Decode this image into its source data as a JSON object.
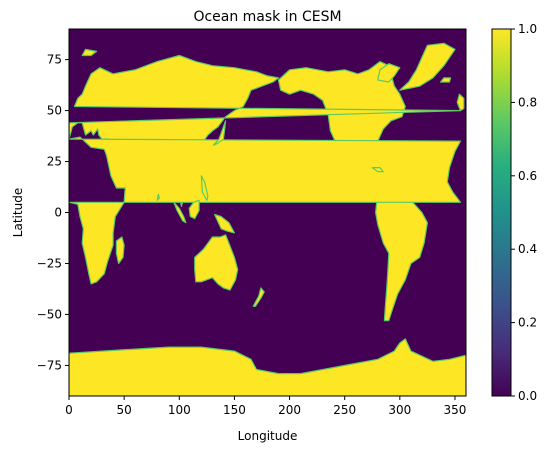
{
  "chart_data": {
    "type": "heatmap",
    "title": "Ocean mask in CESM",
    "xlabel": "Longitude",
    "ylabel": "Latitude",
    "xlim": [
      0,
      360
    ],
    "ylim": [
      -90,
      90
    ],
    "x_ticks": [
      0,
      50,
      100,
      150,
      200,
      250,
      300,
      350
    ],
    "y_ticks": [
      -75,
      -50,
      -25,
      0,
      25,
      50,
      75
    ],
    "colorbar": {
      "colormap": "viridis",
      "range": [
        0.0,
        1.0
      ],
      "ticks": [
        "0.0",
        "0.2",
        "0.4",
        "0.6",
        "0.8",
        "1.0"
      ]
    },
    "background_value": 0.0,
    "land_value": 1.0,
    "colors": {
      "low": "#440154",
      "high": "#fde725"
    },
    "land_regions": [
      {
        "region": "North America",
        "lonlat": [
          [
            190,
            65
          ],
          [
            200,
            70
          ],
          [
            215,
            71
          ],
          [
            235,
            69
          ],
          [
            250,
            70
          ],
          [
            262,
            68
          ],
          [
            272,
            70
          ],
          [
            282,
            74
          ],
          [
            290,
            72
          ],
          [
            295,
            62
          ],
          [
            300,
            58
          ],
          [
            305,
            52
          ],
          [
            302,
            47
          ],
          [
            292,
            45
          ],
          [
            285,
            41
          ],
          [
            280,
            35
          ],
          [
            278,
            30
          ],
          [
            280,
            26
          ],
          [
            278,
            25
          ],
          [
            272,
            30
          ],
          [
            262,
            29
          ],
          [
            258,
            23
          ],
          [
            262,
            19
          ],
          [
            268,
            16
          ],
          [
            275,
            15
          ],
          [
            278,
            10
          ],
          [
            282,
            8
          ],
          [
            275,
            13
          ],
          [
            265,
            16
          ],
          [
            255,
            20
          ],
          [
            250,
            26
          ],
          [
            243,
            33
          ],
          [
            237,
            40
          ],
          [
            235,
            48
          ],
          [
            230,
            55
          ],
          [
            222,
            58
          ],
          [
            210,
            60
          ],
          [
            200,
            58
          ],
          [
            192,
            60
          ],
          [
            190,
            65
          ]
        ]
      },
      {
        "region": "Greenland",
        "lonlat": [
          [
            300,
            60
          ],
          [
            308,
            64
          ],
          [
            315,
            70
          ],
          [
            320,
            76
          ],
          [
            325,
            82
          ],
          [
            340,
            83
          ],
          [
            350,
            80
          ],
          [
            340,
            72
          ],
          [
            330,
            66
          ],
          [
            318,
            62
          ],
          [
            300,
            60
          ]
        ]
      },
      {
        "region": "South America",
        "lonlat": [
          [
            280,
            10
          ],
          [
            290,
            12
          ],
          [
            300,
            8
          ],
          [
            310,
            6
          ],
          [
            320,
            0
          ],
          [
            325,
            -5
          ],
          [
            322,
            -15
          ],
          [
            318,
            -22
          ],
          [
            310,
            -25
          ],
          [
            305,
            -33
          ],
          [
            298,
            -40
          ],
          [
            293,
            -48
          ],
          [
            290,
            -53
          ],
          [
            286,
            -53
          ],
          [
            287,
            -45
          ],
          [
            288,
            -38
          ],
          [
            289,
            -30
          ],
          [
            290,
            -20
          ],
          [
            285,
            -15
          ],
          [
            280,
            -6
          ],
          [
            278,
            0
          ],
          [
            280,
            10
          ]
        ]
      },
      {
        "region": "Europe and Asia",
        "lonlat": [
          [
            0,
            36
          ],
          [
            0,
            44
          ],
          [
            355,
            50
          ],
          [
            5,
            52
          ],
          [
            8,
            56
          ],
          [
            12,
            58
          ],
          [
            15,
            62
          ],
          [
            20,
            68
          ],
          [
            28,
            71
          ],
          [
            40,
            68
          ],
          [
            50,
            69
          ],
          [
            60,
            70
          ],
          [
            70,
            72
          ],
          [
            80,
            74
          ],
          [
            100,
            77
          ],
          [
            115,
            74
          ],
          [
            130,
            72
          ],
          [
            150,
            71
          ],
          [
            160,
            70
          ],
          [
            170,
            69
          ],
          [
            180,
            67
          ],
          [
            190,
            66
          ],
          [
            185,
            64
          ],
          [
            175,
            62
          ],
          [
            165,
            60
          ],
          [
            162,
            56
          ],
          [
            158,
            52
          ],
          [
            150,
            50
          ],
          [
            142,
            47
          ],
          [
            135,
            42
          ],
          [
            130,
            40
          ],
          [
            126,
            38
          ],
          [
            122,
            35
          ],
          [
            120,
            30
          ],
          [
            120,
            25
          ],
          [
            110,
            20
          ],
          [
            108,
            15
          ],
          [
            105,
            10
          ],
          [
            102,
            3
          ],
          [
            100,
            8
          ],
          [
            98,
            16
          ],
          [
            95,
            18
          ],
          [
            90,
            22
          ],
          [
            85,
            21
          ],
          [
            80,
            15
          ],
          [
            77,
            8
          ],
          [
            73,
            18
          ],
          [
            70,
            23
          ],
          [
            66,
            25
          ],
          [
            58,
            25
          ],
          [
            57,
            22
          ],
          [
            55,
            17
          ],
          [
            50,
            14
          ],
          [
            45,
            13
          ],
          [
            43,
            15
          ],
          [
            40,
            22
          ],
          [
            35,
            28
          ],
          [
            34,
            31
          ],
          [
            36,
            36
          ],
          [
            30,
            36
          ],
          [
            27,
            38
          ],
          [
            26,
            41
          ],
          [
            22,
            38
          ],
          [
            20,
            40
          ],
          [
            15,
            38
          ],
          [
            12,
            44
          ],
          [
            8,
            44
          ],
          [
            3,
            42
          ],
          [
            0,
            36
          ]
        ]
      },
      {
        "region": "Africa",
        "lonlat": [
          [
            0,
            36
          ],
          [
            10,
            37
          ],
          [
            20,
            32
          ],
          [
            32,
            31
          ],
          [
            34,
            28
          ],
          [
            38,
            18
          ],
          [
            43,
            12
          ],
          [
            51,
            12
          ],
          [
            50,
            5
          ],
          [
            42,
            -2
          ],
          [
            40,
            -10
          ],
          [
            40,
            -16
          ],
          [
            35,
            -24
          ],
          [
            32,
            -30
          ],
          [
            25,
            -34
          ],
          [
            20,
            -35
          ],
          [
            18,
            -30
          ],
          [
            15,
            -22
          ],
          [
            12,
            -15
          ],
          [
            13,
            -8
          ],
          [
            10,
            -2
          ],
          [
            8,
            4
          ],
          [
            0,
            5
          ],
          [
            355,
            5
          ],
          [
            348,
            10
          ],
          [
            343,
            15
          ],
          [
            345,
            22
          ],
          [
            350,
            30
          ],
          [
            355,
            35
          ],
          [
            0,
            36
          ]
        ]
      },
      {
        "region": "Australia",
        "lonlat": [
          [
            114,
            -22
          ],
          [
            122,
            -18
          ],
          [
            130,
            -12
          ],
          [
            137,
            -12
          ],
          [
            142,
            -11
          ],
          [
            145,
            -15
          ],
          [
            150,
            -22
          ],
          [
            153,
            -28
          ],
          [
            151,
            -33
          ],
          [
            146,
            -38
          ],
          [
            140,
            -37
          ],
          [
            135,
            -35
          ],
          [
            130,
            -32
          ],
          [
            120,
            -34
          ],
          [
            115,
            -34
          ],
          [
            114,
            -28
          ],
          [
            114,
            -22
          ]
        ]
      },
      {
        "region": "Antarctica",
        "lonlat": [
          [
            0,
            -69
          ],
          [
            30,
            -68
          ],
          [
            60,
            -67
          ],
          [
            90,
            -66
          ],
          [
            120,
            -66
          ],
          [
            150,
            -68
          ],
          [
            165,
            -72
          ],
          [
            170,
            -77
          ],
          [
            190,
            -79
          ],
          [
            210,
            -79
          ],
          [
            240,
            -76
          ],
          [
            260,
            -74
          ],
          [
            280,
            -72
          ],
          [
            295,
            -68
          ],
          [
            300,
            -64
          ],
          [
            305,
            -62
          ],
          [
            310,
            -68
          ],
          [
            330,
            -73
          ],
          [
            345,
            -72
          ],
          [
            360,
            -70
          ],
          [
            360,
            -90
          ],
          [
            0,
            -90
          ],
          [
            0,
            -69
          ]
        ]
      },
      {
        "region": "Madagascar",
        "lonlat": [
          [
            43,
            -14
          ],
          [
            48,
            -12
          ],
          [
            50,
            -16
          ],
          [
            49,
            -22
          ],
          [
            45,
            -25
          ],
          [
            43,
            -20
          ],
          [
            43,
            -14
          ]
        ]
      },
      {
        "region": "Japan",
        "lonlat": [
          [
            131,
            33
          ],
          [
            135,
            34
          ],
          [
            140,
            36
          ],
          [
            141,
            40
          ],
          [
            142,
            45
          ],
          [
            140,
            42
          ],
          [
            136,
            36
          ],
          [
            131,
            33
          ]
        ]
      },
      {
        "region": "Great Britain",
        "lonlat": [
          [
            355,
            50
          ],
          [
            358,
            51
          ],
          [
            358,
            56
          ],
          [
            354,
            58
          ],
          [
            352,
            54
          ],
          [
            355,
            50
          ]
        ]
      },
      {
        "region": "Borneo",
        "lonlat": [
          [
            109,
            2
          ],
          [
            113,
            5
          ],
          [
            118,
            6
          ],
          [
            118,
            1
          ],
          [
            114,
            -3
          ],
          [
            110,
            -2
          ],
          [
            109,
            2
          ]
        ]
      },
      {
        "region": "Sumatra",
        "lonlat": [
          [
            95,
            5
          ],
          [
            100,
            2
          ],
          [
            104,
            -2
          ],
          [
            106,
            -5
          ],
          [
            103,
            -4
          ],
          [
            98,
            1
          ],
          [
            95,
            5
          ]
        ]
      },
      {
        "region": "New Guinea",
        "lonlat": [
          [
            132,
            -1
          ],
          [
            138,
            -2
          ],
          [
            145,
            -5
          ],
          [
            150,
            -10
          ],
          [
            143,
            -9
          ],
          [
            138,
            -8
          ],
          [
            132,
            -1
          ]
        ]
      },
      {
        "region": "New Zealand",
        "lonlat": [
          [
            167,
            -46
          ],
          [
            172,
            -41
          ],
          [
            174,
            -37
          ],
          [
            177,
            -39
          ],
          [
            174,
            -42
          ],
          [
            169,
            -46
          ],
          [
            167,
            -46
          ]
        ]
      },
      {
        "region": "Baffin Island",
        "lonlat": [
          [
            280,
            65
          ],
          [
            290,
            64
          ],
          [
            295,
            67
          ],
          [
            300,
            71
          ],
          [
            290,
            73
          ],
          [
            282,
            70
          ],
          [
            280,
            65
          ]
        ]
      },
      {
        "region": "Svalbard",
        "lonlat": [
          [
            12,
            77
          ],
          [
            20,
            77
          ],
          [
            25,
            79
          ],
          [
            15,
            80
          ],
          [
            12,
            77
          ]
        ]
      },
      {
        "region": "Iceland",
        "lonlat": [
          [
            337,
            64
          ],
          [
            345,
            64
          ],
          [
            346,
            66
          ],
          [
            340,
            66
          ],
          [
            337,
            64
          ]
        ]
      },
      {
        "region": "Philippines",
        "lonlat": [
          [
            120,
            18
          ],
          [
            123,
            15
          ],
          [
            126,
            8
          ],
          [
            125,
            6
          ],
          [
            121,
            10
          ],
          [
            120,
            18
          ]
        ]
      },
      {
        "region": "Sri Lanka",
        "lonlat": [
          [
            80,
            6
          ],
          [
            82,
            7
          ],
          [
            81,
            9
          ],
          [
            80,
            6
          ]
        ]
      },
      {
        "region": "Cuba",
        "lonlat": [
          [
            275,
            22
          ],
          [
            282,
            22
          ],
          [
            285,
            20
          ],
          [
            280,
            20
          ],
          [
            275,
            22
          ]
        ]
      }
    ]
  }
}
